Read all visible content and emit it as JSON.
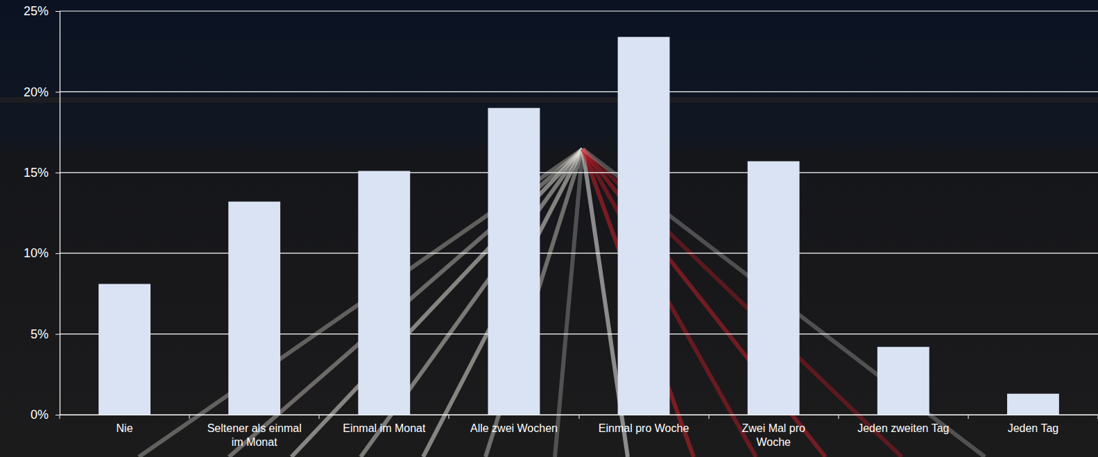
{
  "chart_data": {
    "type": "bar",
    "categories": [
      "Nie",
      "Seltener als einmal im Monat",
      "Einmal im Monat",
      "Alle zwei Wochen",
      "Einmal pro Woche",
      "Zwei Mal pro Woche",
      "Jeden zweiten Tag",
      "Jeden Tag"
    ],
    "values": [
      8.1,
      13.2,
      15.1,
      19.0,
      23.4,
      15.7,
      4.2,
      1.3
    ],
    "color": "#dae3f3",
    "ylim": [
      0,
      25
    ],
    "yticks": [
      {
        "value": 0,
        "label": "0%"
      },
      {
        "value": 5,
        "label": "5%"
      },
      {
        "value": 10,
        "label": "10%"
      },
      {
        "value": 15,
        "label": "15%"
      },
      {
        "value": 20,
        "label": "20%"
      },
      {
        "value": 25,
        "label": "25%"
      }
    ],
    "grid": true
  }
}
